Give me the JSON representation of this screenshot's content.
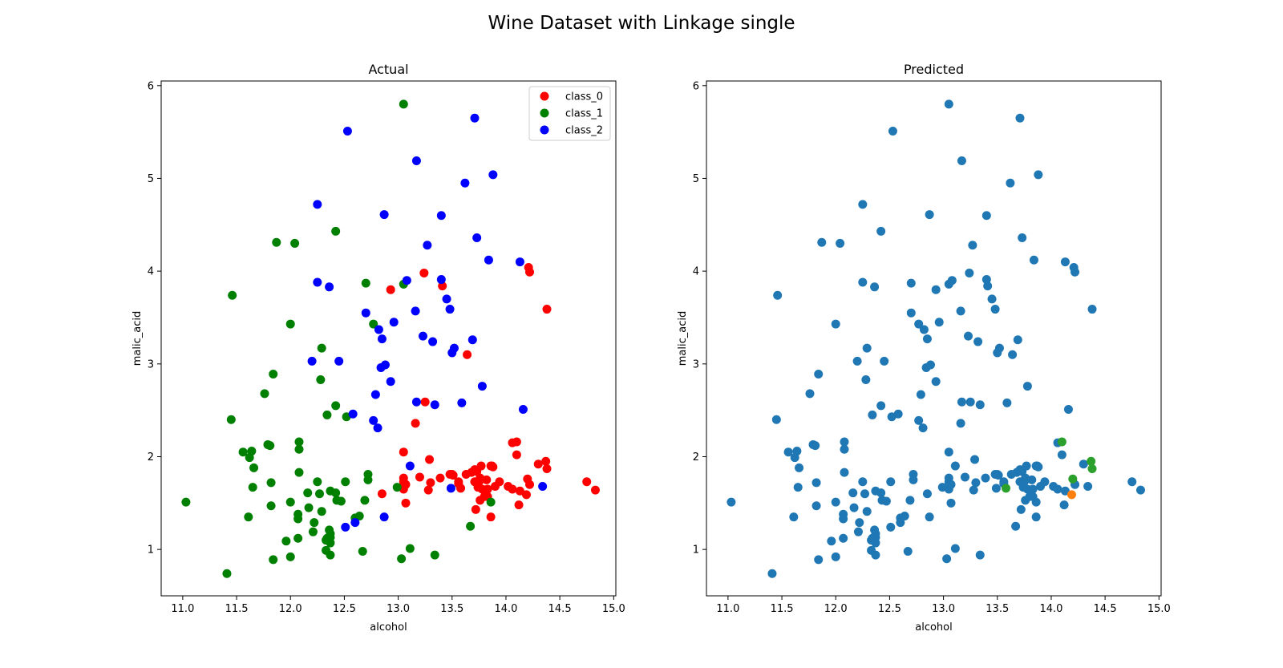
{
  "figure": {
    "title": "Wine Dataset with Linkage single"
  },
  "chart_data": [
    {
      "type": "scatter",
      "title": "Actual",
      "xlabel": "alcohol",
      "ylabel": "malic_acid",
      "xlim": [
        10.8,
        15.02
      ],
      "ylim": [
        0.5,
        6.05
      ],
      "xticks": [
        11.0,
        11.5,
        12.0,
        12.5,
        13.0,
        13.5,
        14.0,
        14.5,
        15.0
      ],
      "yticks": [
        1,
        2,
        3,
        4,
        5,
        6
      ],
      "grid": false,
      "legend": "top-right",
      "series": [
        {
          "name": "class_0",
          "color": "#ff0000",
          "points": [
            [
              13.24,
              3.98
            ],
            [
              13.41,
              3.84
            ],
            [
              14.21,
              4.04
            ],
            [
              14.22,
              3.99
            ],
            [
              14.38,
              3.59
            ],
            [
              12.93,
              3.8
            ],
            [
              13.64,
              3.1
            ],
            [
              13.25,
              2.59
            ],
            [
              13.16,
              2.36
            ],
            [
              13.05,
              2.05
            ],
            [
              14.06,
              2.15
            ],
            [
              14.1,
              2.16
            ],
            [
              14.1,
              2.02
            ],
            [
              13.29,
              1.97
            ],
            [
              13.63,
              1.81
            ],
            [
              13.73,
              1.84
            ],
            [
              13.77,
              1.9
            ],
            [
              13.82,
              1.75
            ],
            [
              13.86,
              1.9
            ],
            [
              13.88,
              1.89
            ],
            [
              13.94,
              1.73
            ],
            [
              14.02,
              1.68
            ],
            [
              14.06,
              1.65
            ],
            [
              14.12,
              1.48
            ],
            [
              14.19,
              1.59
            ],
            [
              14.2,
              1.76
            ],
            [
              14.22,
              1.7
            ],
            [
              14.3,
              1.92
            ],
            [
              14.37,
              1.95
            ],
            [
              14.38,
              1.87
            ],
            [
              13.05,
              1.77
            ],
            [
              13.05,
              1.73
            ],
            [
              13.05,
              1.65
            ],
            [
              13.07,
              1.5
            ],
            [
              13.2,
              1.78
            ],
            [
              13.28,
              1.64
            ],
            [
              13.3,
              1.72
            ],
            [
              13.39,
              1.77
            ],
            [
              13.48,
              1.81
            ],
            [
              13.5,
              1.81
            ],
            [
              13.51,
              1.8
            ],
            [
              13.56,
              1.73
            ],
            [
              13.56,
              1.71
            ],
            [
              13.58,
              1.66
            ],
            [
              13.68,
              1.83
            ],
            [
              13.71,
              1.86
            ],
            [
              13.72,
              1.43
            ],
            [
              13.74,
              1.67
            ],
            [
              13.75,
              1.73
            ],
            [
              13.76,
              1.53
            ],
            [
              13.78,
              1.65
            ],
            [
              13.8,
              1.57
            ],
            [
              13.83,
              1.65
            ],
            [
              13.83,
              1.57
            ],
            [
              13.87,
              1.9
            ],
            [
              13.9,
              1.68
            ],
            [
              13.86,
              1.35
            ],
            [
              14.13,
              1.63
            ],
            [
              14.75,
              1.73
            ],
            [
              14.83,
              1.64
            ],
            [
              12.85,
              1.6
            ],
            [
              13.07,
              1.7
            ],
            [
              13.71,
              1.73
            ],
            [
              13.76,
              1.77
            ]
          ]
        },
        {
          "name": "class_1",
          "color": "#008000",
          "points": [
            [
              13.05,
              5.8
            ],
            [
              11.87,
              4.31
            ],
            [
              12.04,
              4.3
            ],
            [
              12.42,
              4.43
            ],
            [
              11.46,
              3.74
            ],
            [
              12.7,
              3.87
            ],
            [
              13.05,
              3.86
            ],
            [
              12.0,
              3.43
            ],
            [
              12.77,
              3.43
            ],
            [
              12.29,
              3.17
            ],
            [
              11.84,
              2.89
            ],
            [
              12.28,
              2.83
            ],
            [
              11.76,
              2.68
            ],
            [
              12.42,
              2.55
            ],
            [
              12.34,
              2.45
            ],
            [
              12.52,
              2.43
            ],
            [
              11.45,
              2.4
            ],
            [
              11.56,
              2.05
            ],
            [
              11.62,
              1.99
            ],
            [
              11.64,
              2.06
            ],
            [
              11.79,
              2.13
            ],
            [
              11.81,
              2.12
            ],
            [
              12.08,
              2.08
            ],
            [
              12.08,
              2.16
            ],
            [
              11.66,
              1.88
            ],
            [
              12.08,
              1.83
            ],
            [
              12.72,
              1.81
            ],
            [
              12.72,
              1.75
            ],
            [
              12.25,
              1.73
            ],
            [
              12.51,
              1.73
            ],
            [
              11.65,
              1.67
            ],
            [
              11.82,
              1.72
            ],
            [
              12.17,
              1.45
            ],
            [
              12.37,
              1.63
            ],
            [
              12.42,
              1.61
            ],
            [
              12.43,
              1.53
            ],
            [
              12.47,
              1.52
            ],
            [
              12.69,
              1.53
            ],
            [
              12.0,
              1.51
            ],
            [
              11.03,
              1.51
            ],
            [
              11.61,
              1.35
            ],
            [
              11.82,
              1.47
            ],
            [
              12.07,
              1.33
            ],
            [
              12.07,
              1.38
            ],
            [
              12.29,
              1.41
            ],
            [
              12.16,
              1.61
            ],
            [
              12.22,
              1.29
            ],
            [
              12.64,
              1.36
            ],
            [
              12.6,
              1.34
            ],
            [
              12.36,
              1.21
            ],
            [
              12.37,
              1.17
            ],
            [
              12.37,
              1.13
            ],
            [
              12.33,
              1.1
            ],
            [
              12.37,
              1.07
            ],
            [
              12.34,
              1.12
            ],
            [
              11.96,
              1.09
            ],
            [
              12.07,
              1.12
            ],
            [
              12.21,
              1.19
            ],
            [
              12.33,
              0.99
            ],
            [
              12.37,
              0.94
            ],
            [
              12.0,
              0.92
            ],
            [
              11.84,
              0.89
            ],
            [
              11.41,
              0.74
            ],
            [
              12.67,
              0.98
            ],
            [
              13.11,
              1.01
            ],
            [
              13.03,
              0.9
            ],
            [
              13.34,
              0.94
            ],
            [
              13.67,
              1.25
            ],
            [
              13.86,
              1.51
            ],
            [
              12.99,
              1.67
            ],
            [
              12.27,
              1.6
            ]
          ]
        },
        {
          "name": "class_2",
          "color": "#0000ff",
          "points": [
            [
              12.53,
              5.51
            ],
            [
              13.71,
              5.65
            ],
            [
              13.17,
              5.19
            ],
            [
              13.88,
              5.04
            ],
            [
              13.62,
              4.95
            ],
            [
              12.25,
              4.72
            ],
            [
              12.87,
              4.61
            ],
            [
              13.4,
              4.6
            ],
            [
              13.73,
              4.36
            ],
            [
              13.27,
              4.28
            ],
            [
              13.84,
              4.12
            ],
            [
              14.13,
              4.1
            ],
            [
              13.08,
              3.9
            ],
            [
              13.4,
              3.91
            ],
            [
              12.25,
              3.88
            ],
            [
              12.36,
              3.83
            ],
            [
              13.45,
              3.7
            ],
            [
              13.16,
              3.57
            ],
            [
              12.7,
              3.55
            ],
            [
              13.48,
              3.59
            ],
            [
              12.96,
              3.45
            ],
            [
              12.82,
              3.37
            ],
            [
              13.23,
              3.3
            ],
            [
              13.32,
              3.24
            ],
            [
              12.85,
              3.27
            ],
            [
              13.69,
              3.26
            ],
            [
              13.52,
              3.17
            ],
            [
              13.5,
              3.12
            ],
            [
              12.2,
              3.03
            ],
            [
              12.45,
              3.03
            ],
            [
              12.88,
              2.99
            ],
            [
              12.84,
              2.96
            ],
            [
              12.93,
              2.81
            ],
            [
              13.78,
              2.76
            ],
            [
              12.79,
              2.67
            ],
            [
              13.17,
              2.59
            ],
            [
              13.34,
              2.56
            ],
            [
              13.59,
              2.58
            ],
            [
              14.16,
              2.51
            ],
            [
              12.58,
              2.46
            ],
            [
              12.77,
              2.39
            ],
            [
              12.81,
              2.31
            ],
            [
              13.11,
              1.9
            ],
            [
              13.49,
              1.66
            ],
            [
              14.34,
              1.68
            ],
            [
              12.51,
              1.24
            ],
            [
              12.6,
              1.29
            ],
            [
              12.87,
              1.35
            ]
          ]
        }
      ]
    },
    {
      "type": "scatter",
      "title": "Predicted",
      "xlabel": "alcohol",
      "ylabel": "malic_acid",
      "xlim": [
        10.8,
        15.02
      ],
      "ylim": [
        0.5,
        6.05
      ],
      "xticks": [
        11.0,
        11.5,
        12.0,
        12.5,
        13.0,
        13.5,
        14.0,
        14.5,
        15.0
      ],
      "yticks": [
        1,
        2,
        3,
        4,
        5,
        6
      ],
      "grid": false,
      "legend": "none",
      "series": [
        {
          "color": "#1f77b4",
          "points": "all_except_highlighted"
        },
        {
          "color": "#2ca02c",
          "points": [
            [
              14.1,
              2.16
            ],
            [
              14.2,
              1.76
            ],
            [
              14.37,
              1.95
            ],
            [
              14.38,
              1.87
            ],
            [
              13.58,
              1.66
            ]
          ]
        },
        {
          "color": "#ff7f0e",
          "points": [
            [
              14.19,
              1.59
            ]
          ]
        }
      ]
    }
  ]
}
